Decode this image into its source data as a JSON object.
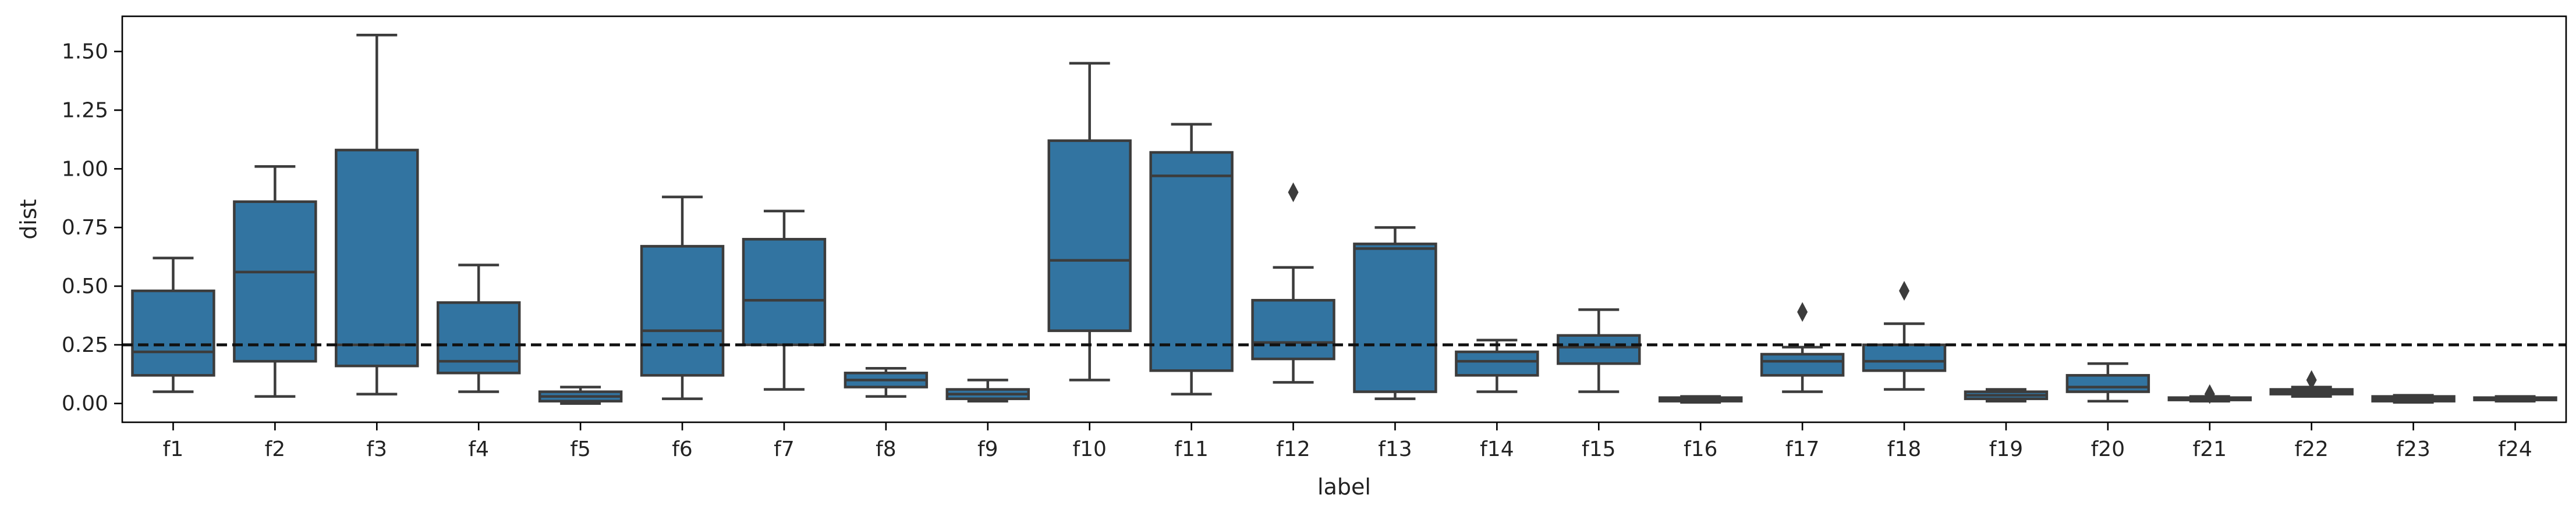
{
  "chart_data": {
    "type": "box",
    "xlabel": "label",
    "ylabel": "dist",
    "ylim": [
      -0.08,
      1.65
    ],
    "yticks": [
      "0.00",
      "0.25",
      "0.50",
      "0.75",
      "1.00",
      "1.25",
      "1.50"
    ],
    "reference_line": {
      "y": 0.25,
      "style": "dashed",
      "color": "#111111"
    },
    "box_color": "#3274a1",
    "categories": [
      "f1",
      "f2",
      "f3",
      "f4",
      "f5",
      "f6",
      "f7",
      "f8",
      "f9",
      "f10",
      "f11",
      "f12",
      "f13",
      "f14",
      "f15",
      "f16",
      "f17",
      "f18",
      "f19",
      "f20",
      "f21",
      "f22",
      "f23",
      "f24"
    ],
    "boxes": [
      {
        "label": "f1",
        "whislo": 0.05,
        "q1": 0.12,
        "median": 0.22,
        "q3": 0.48,
        "whishi": 0.62,
        "fliers": []
      },
      {
        "label": "f2",
        "whislo": 0.03,
        "q1": 0.18,
        "median": 0.56,
        "q3": 0.86,
        "whishi": 1.01,
        "fliers": []
      },
      {
        "label": "f3",
        "whislo": 0.04,
        "q1": 0.16,
        "median": 0.25,
        "q3": 1.08,
        "whishi": 1.57,
        "fliers": []
      },
      {
        "label": "f4",
        "whislo": 0.05,
        "q1": 0.13,
        "median": 0.18,
        "q3": 0.43,
        "whishi": 0.59,
        "fliers": []
      },
      {
        "label": "f5",
        "whislo": 0.0,
        "q1": 0.01,
        "median": 0.03,
        "q3": 0.05,
        "whishi": 0.07,
        "fliers": []
      },
      {
        "label": "f6",
        "whislo": 0.02,
        "q1": 0.12,
        "median": 0.31,
        "q3": 0.67,
        "whishi": 0.88,
        "fliers": []
      },
      {
        "label": "f7",
        "whislo": 0.06,
        "q1": 0.25,
        "median": 0.44,
        "q3": 0.7,
        "whishi": 0.82,
        "fliers": []
      },
      {
        "label": "f8",
        "whislo": 0.03,
        "q1": 0.07,
        "median": 0.1,
        "q3": 0.13,
        "whishi": 0.15,
        "fliers": []
      },
      {
        "label": "f9",
        "whislo": 0.01,
        "q1": 0.02,
        "median": 0.04,
        "q3": 0.06,
        "whishi": 0.1,
        "fliers": []
      },
      {
        "label": "f10",
        "whislo": 0.1,
        "q1": 0.31,
        "median": 0.61,
        "q3": 1.12,
        "whishi": 1.45,
        "fliers": []
      },
      {
        "label": "f11",
        "whislo": 0.04,
        "q1": 0.14,
        "median": 0.97,
        "q3": 1.07,
        "whishi": 1.19,
        "fliers": []
      },
      {
        "label": "f12",
        "whislo": 0.09,
        "q1": 0.19,
        "median": 0.26,
        "q3": 0.44,
        "whishi": 0.58,
        "fliers": [
          0.9
        ]
      },
      {
        "label": "f13",
        "whislo": 0.02,
        "q1": 0.05,
        "median": 0.66,
        "q3": 0.68,
        "whishi": 0.75,
        "fliers": []
      },
      {
        "label": "f14",
        "whislo": 0.05,
        "q1": 0.12,
        "median": 0.18,
        "q3": 0.22,
        "whishi": 0.27,
        "fliers": []
      },
      {
        "label": "f15",
        "whislo": 0.05,
        "q1": 0.17,
        "median": 0.24,
        "q3": 0.29,
        "whishi": 0.4,
        "fliers": []
      },
      {
        "label": "f16",
        "whislo": 0.005,
        "q1": 0.01,
        "median": 0.015,
        "q3": 0.025,
        "whishi": 0.03,
        "fliers": []
      },
      {
        "label": "f17",
        "whislo": 0.05,
        "q1": 0.12,
        "median": 0.18,
        "q3": 0.21,
        "whishi": 0.24,
        "fliers": [
          0.39
        ]
      },
      {
        "label": "f18",
        "whislo": 0.06,
        "q1": 0.14,
        "median": 0.18,
        "q3": 0.25,
        "whishi": 0.34,
        "fliers": [
          0.48
        ]
      },
      {
        "label": "f19",
        "whislo": 0.01,
        "q1": 0.02,
        "median": 0.035,
        "q3": 0.05,
        "whishi": 0.06,
        "fliers": []
      },
      {
        "label": "f20",
        "whislo": 0.01,
        "q1": 0.05,
        "median": 0.07,
        "q3": 0.12,
        "whishi": 0.17,
        "fliers": []
      },
      {
        "label": "f21",
        "whislo": 0.01,
        "q1": 0.015,
        "median": 0.02,
        "q3": 0.025,
        "whishi": 0.03,
        "fliers": [
          0.04
        ]
      },
      {
        "label": "f22",
        "whislo": 0.03,
        "q1": 0.04,
        "median": 0.05,
        "q3": 0.06,
        "whishi": 0.07,
        "fliers": [
          0.1
        ]
      },
      {
        "label": "f23",
        "whislo": 0.005,
        "q1": 0.01,
        "median": 0.02,
        "q3": 0.03,
        "whishi": 0.035,
        "fliers": []
      },
      {
        "label": "f24",
        "whislo": 0.01,
        "q1": 0.015,
        "median": 0.02,
        "q3": 0.025,
        "whishi": 0.03,
        "fliers": []
      }
    ]
  }
}
